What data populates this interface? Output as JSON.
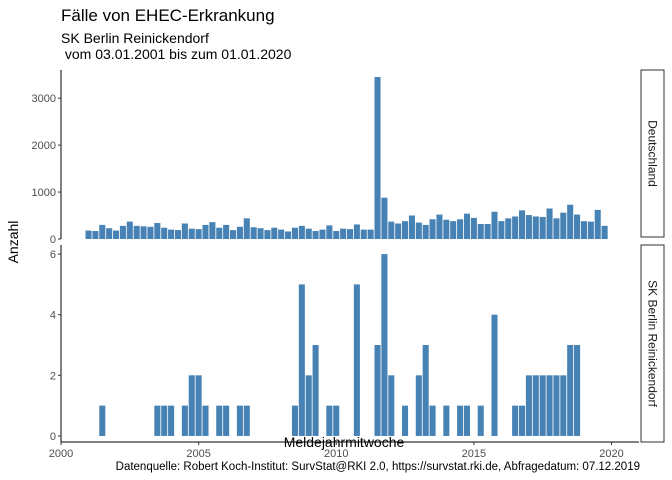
{
  "chart_data": {
    "type": "bar",
    "title": "Fälle von EHEC-Erkrankung",
    "subtitle_line1": "SK Berlin Reinickendorf",
    "subtitle_line2": " vom 03.01.2001 bis zum 01.01.2020",
    "xlabel": "Meldejahrmitwoche",
    "ylabel": "Anzahl",
    "caption": "Datenquelle: Robert Koch-Institut: SurvStat@RKI 2.0, https://survstat.rki.de, Abfragedatum: 07.12.2019",
    "bar_color": "#4682B4",
    "x_ticks": [
      2000,
      2005,
      2010,
      2015,
      2020
    ],
    "xlim": [
      2000,
      2021
    ],
    "panels": [
      {
        "name": "Deutschland",
        "ylim": [
          0,
          3600
        ],
        "y_ticks": [
          0,
          1000,
          2000,
          3000
        ],
        "series": [
          {
            "x_start": 2001.0,
            "x_step": 0.25,
            "values": [
              180,
              170,
              300,
              230,
              180,
              280,
              370,
              280,
              270,
              260,
              340,
              240,
              200,
              190,
              330,
              220,
              210,
              300,
              360,
              240,
              300,
              190,
              260,
              440,
              250,
              230,
              190,
              240,
              200,
              160,
              240,
              280,
              220,
              170,
              200,
              290,
              170,
              220,
              210,
              310,
              200,
              200,
              3450,
              880,
              370,
              330,
              380,
              500,
              350,
              300,
              420,
              520,
              410,
              380,
              420,
              540,
              450,
              320,
              320,
              580,
              380,
              440,
              480,
              610,
              510,
              480,
              470,
              650,
              440,
              560,
              730,
              520,
              380,
              370,
              620,
              280
            ]
          }
        ]
      },
      {
        "name": "SK Berlin Reinickendorf",
        "ylim": [
          -0.2,
          6.3
        ],
        "y_ticks": [
          0,
          2,
          4,
          6
        ],
        "series": [
          {
            "x_start": 2001.0,
            "x_step": 0.25,
            "values": [
              0,
              0,
              1,
              0,
              0,
              0,
              0,
              0,
              0,
              0,
              1,
              1,
              1,
              0,
              1,
              2,
              2,
              1,
              0,
              1,
              1,
              0,
              1,
              1,
              0,
              0,
              0,
              0,
              0,
              0,
              1,
              5,
              2,
              3,
              0,
              1,
              1,
              0,
              0,
              5,
              0,
              0,
              3,
              6,
              2,
              0,
              1,
              0,
              2,
              3,
              1,
              0,
              1,
              0,
              1,
              1,
              0,
              1,
              0,
              4,
              0,
              0,
              1,
              1,
              2,
              2,
              2,
              2,
              2,
              2,
              3,
              3,
              0,
              0,
              0,
              0
            ]
          }
        ]
      }
    ]
  }
}
